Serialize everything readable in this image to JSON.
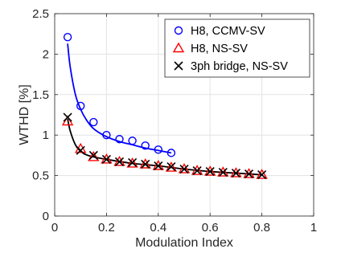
{
  "chart_data": {
    "type": "line",
    "xlabel": "Modulation Index",
    "ylabel": "WTHD [%]",
    "xlim": [
      0,
      1
    ],
    "ylim": [
      0,
      2.5
    ],
    "x_ticks": [
      0,
      0.2,
      0.4,
      0.6,
      0.8,
      1
    ],
    "x_tick_labels": [
      "0",
      "0.2",
      "0.4",
      "0.6",
      "0.8",
      "1"
    ],
    "y_ticks": [
      0,
      0.5,
      1,
      1.5,
      2,
      2.5
    ],
    "y_tick_labels": [
      "0",
      "0.5",
      "1",
      "1.5",
      "2",
      "2.5"
    ],
    "grid": true,
    "legend_position": "top-right",
    "series": [
      {
        "name": "H8, CCMV-SV",
        "marker": "circle",
        "color": "#0000ff",
        "x": [
          0.05,
          0.1,
          0.15,
          0.2,
          0.25,
          0.3,
          0.35,
          0.4,
          0.45
        ],
        "y": [
          2.21,
          1.36,
          1.16,
          1.0,
          0.95,
          0.93,
          0.87,
          0.82,
          0.78
        ],
        "fit": {
          "color": "#0000ff",
          "x": [
            0.05,
            0.06,
            0.08,
            0.1,
            0.12,
            0.15,
            0.2,
            0.25,
            0.3,
            0.35,
            0.4,
            0.45
          ],
          "y": [
            2.13,
            1.84,
            1.5,
            1.32,
            1.2,
            1.08,
            0.98,
            0.92,
            0.88,
            0.84,
            0.81,
            0.78
          ]
        }
      },
      {
        "name": "H8, NS-SV",
        "marker": "triangle",
        "color": "#ff0000",
        "x": [
          0.05,
          0.1,
          0.15,
          0.2,
          0.25,
          0.3,
          0.35,
          0.4,
          0.45,
          0.5,
          0.55,
          0.6,
          0.65,
          0.7,
          0.75,
          0.8
        ],
        "y": [
          1.17,
          0.83,
          0.73,
          0.7,
          0.67,
          0.65,
          0.64,
          0.62,
          0.6,
          0.58,
          0.56,
          0.55,
          0.54,
          0.53,
          0.52,
          0.51
        ],
        "fit": {
          "color": "#000000",
          "x": [
            0.05,
            0.06,
            0.08,
            0.1,
            0.12,
            0.15,
            0.2,
            0.3,
            0.4,
            0.5,
            0.6,
            0.7,
            0.8
          ],
          "y": [
            1.2,
            1.05,
            0.88,
            0.8,
            0.76,
            0.73,
            0.7,
            0.65,
            0.62,
            0.58,
            0.55,
            0.53,
            0.51
          ]
        }
      },
      {
        "name": "3ph bridge, NS-SV",
        "marker": "x",
        "color": "#000000",
        "x": [
          0.05,
          0.1,
          0.15,
          0.2,
          0.25,
          0.3,
          0.35,
          0.4,
          0.45,
          0.5,
          0.55,
          0.6,
          0.65,
          0.7,
          0.75,
          0.8
        ],
        "y": [
          1.22,
          0.81,
          0.75,
          0.7,
          0.67,
          0.66,
          0.64,
          0.62,
          0.61,
          0.58,
          0.56,
          0.55,
          0.54,
          0.53,
          0.52,
          0.51
        ]
      }
    ]
  }
}
